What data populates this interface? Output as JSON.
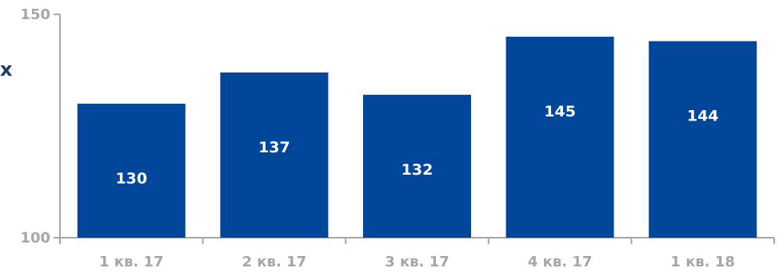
{
  "chart_data": {
    "type": "bar",
    "categories": [
      "1 кв. 17",
      "2 кв. 17",
      "3 кв. 17",
      "4 кв. 17",
      "1 кв. 18"
    ],
    "values": [
      130,
      137,
      132,
      145,
      144
    ],
    "data_labels": [
      "130",
      "137",
      "132",
      "145",
      "144"
    ],
    "y_ticks": [
      "100",
      "150"
    ],
    "ylim": [
      100,
      150
    ],
    "side_label": "x",
    "bar_color": "#00479b",
    "axis_color": "#a6a6a6",
    "grid": false,
    "legend": "none"
  }
}
